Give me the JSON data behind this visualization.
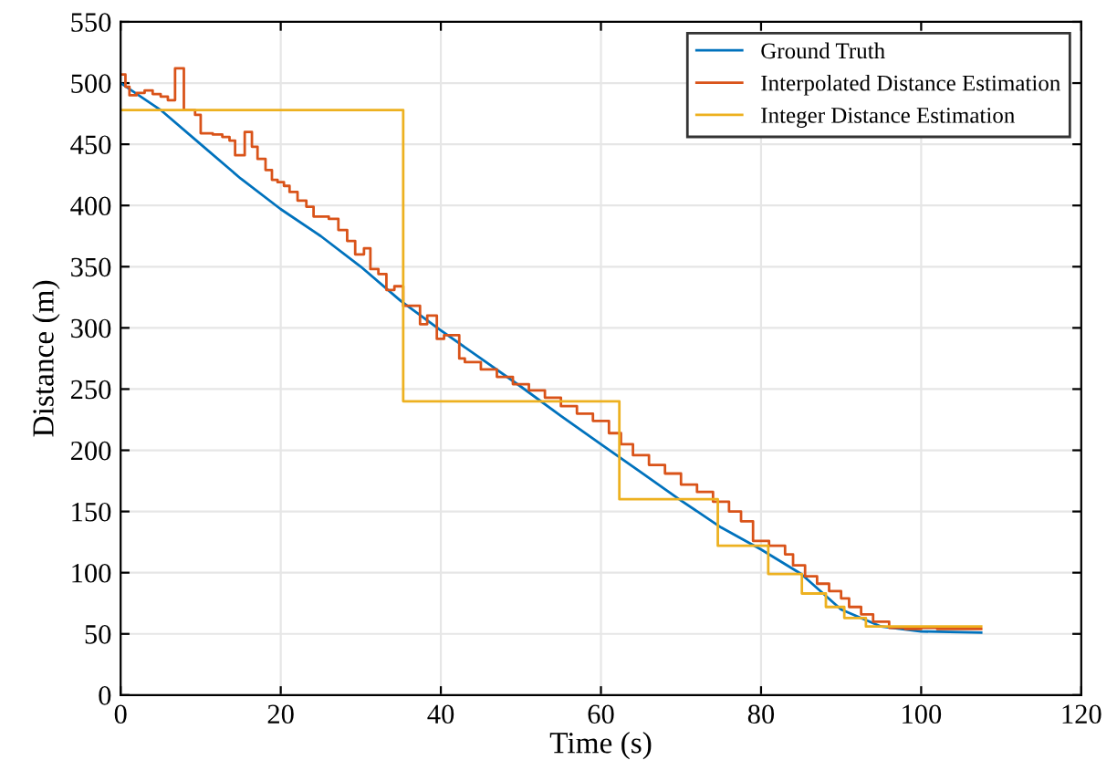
{
  "chart_data": {
    "type": "line",
    "xlabel": "Time (s)",
    "ylabel": "Distance (m)",
    "xlim": [
      0,
      120
    ],
    "xticks": [
      0,
      20,
      40,
      60,
      80,
      100,
      120
    ],
    "ylim": [
      0,
      550
    ],
    "yticks": [
      0,
      50,
      100,
      150,
      200,
      250,
      300,
      350,
      400,
      450,
      500,
      550
    ],
    "grid": true,
    "legend": "top right",
    "series": [
      {
        "name": "Ground Truth",
        "color": "#0072bd",
        "x": [
          0,
          5,
          10,
          15,
          20,
          25,
          30,
          35,
          40,
          45,
          50,
          55,
          60,
          65,
          70,
          75,
          80,
          85,
          90,
          95,
          100,
          107.5
        ],
        "values": [
          500,
          478,
          450,
          422,
          397,
          375,
          350,
          322,
          298,
          275,
          252,
          228,
          205,
          182,
          159,
          137,
          119,
          99,
          70,
          56,
          52,
          51
        ]
      },
      {
        "name": "Interpolated Distance Estimation",
        "type": "step",
        "color": "#d95319",
        "x": [
          0,
          0.6,
          1.1,
          2.0,
          3.0,
          4.0,
          5.0,
          5.9,
          6.8,
          7.9,
          9.3,
          10.0,
          11.5,
          12.7,
          13.6,
          14.3,
          15.5,
          16.4,
          17.1,
          18.1,
          18.9,
          19.6,
          20.4,
          21.1,
          22.1,
          23.2,
          24.1,
          26.0,
          27.2,
          28.3,
          29.3,
          30.4,
          31.2,
          32.2,
          33.2,
          34.2,
          35.3,
          37.4,
          38.3,
          39.5,
          40.4,
          42.3,
          43,
          45,
          47,
          49,
          51,
          53,
          55,
          57,
          59,
          61,
          62.5,
          64,
          66,
          68,
          70,
          72,
          74,
          76,
          77.5,
          79,
          81,
          83,
          84,
          85.5,
          87,
          88.5,
          90,
          91,
          92.5,
          94,
          96,
          98,
          100,
          102,
          104,
          107.5
        ],
        "values": [
          507,
          497,
          490,
          492,
          494,
          491,
          489,
          486,
          512,
          478,
          474,
          459,
          458,
          456,
          453,
          441,
          460,
          448,
          438,
          429,
          421,
          419,
          416,
          411,
          404,
          399,
          391,
          389,
          380,
          371,
          360,
          365,
          348,
          344,
          331,
          334,
          318,
          303,
          310,
          291,
          294,
          275,
          272,
          266,
          260,
          254,
          249,
          243,
          236,
          230,
          224,
          214,
          205,
          196,
          188,
          181,
          172,
          166,
          158,
          150,
          142,
          126,
          122,
          115,
          106,
          97,
          91,
          85,
          79,
          72,
          66,
          60,
          55,
          54,
          55,
          54,
          54,
          54
        ]
      },
      {
        "name": "Integer Distance Estimation",
        "type": "step",
        "color": "#edb120",
        "x": [
          0,
          35.3,
          62.3,
          74.6,
          80.9,
          85.1,
          88.1,
          90.4,
          93.1,
          107.5
        ],
        "values": [
          478,
          240,
          160,
          122,
          99,
          83,
          72,
          63,
          56,
          56
        ]
      }
    ]
  }
}
